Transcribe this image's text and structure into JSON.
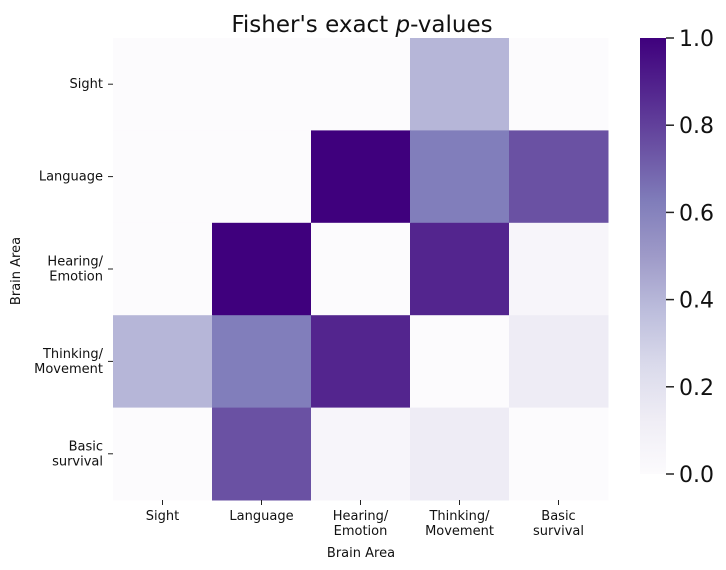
{
  "chart_data": {
    "type": "heatmap",
    "title_prefix": "Fisher's exact ",
    "title_italic": "p",
    "title_suffix": "-values",
    "xlabel": "Brain Area",
    "ylabel": "Brain Area",
    "x_categories": [
      [
        "Sight"
      ],
      [
        "Language"
      ],
      [
        "Hearing/",
        "Emotion"
      ],
      [
        "Thinking/",
        "Movement"
      ],
      [
        "Basic",
        "survival"
      ]
    ],
    "y_categories": [
      [
        "Sight"
      ],
      [
        "Language"
      ],
      [
        "Hearing/",
        "Emotion"
      ],
      [
        "Thinking/",
        "Movement"
      ],
      [
        "Basic",
        "survival"
      ]
    ],
    "values": [
      [
        0.0,
        0.0,
        0.0,
        0.4,
        0.0
      ],
      [
        0.0,
        0.0,
        1.0,
        0.62,
        0.75
      ],
      [
        0.0,
        1.0,
        0.0,
        0.88,
        0.05
      ],
      [
        0.4,
        0.62,
        0.88,
        0.0,
        0.13
      ],
      [
        0.0,
        0.75,
        0.05,
        0.13,
        0.0
      ]
    ],
    "colorbar": {
      "range": [
        0.0,
        1.0
      ],
      "ticks": [
        "0.0",
        "0.2",
        "0.4",
        "0.6",
        "0.8",
        "1.0"
      ]
    },
    "colormap": [
      "#fcfbfd",
      "#efedf5",
      "#dadaeb",
      "#bcbddc",
      "#9e9ac8",
      "#807dba",
      "#6a51a3",
      "#54278f",
      "#3f007d"
    ]
  }
}
